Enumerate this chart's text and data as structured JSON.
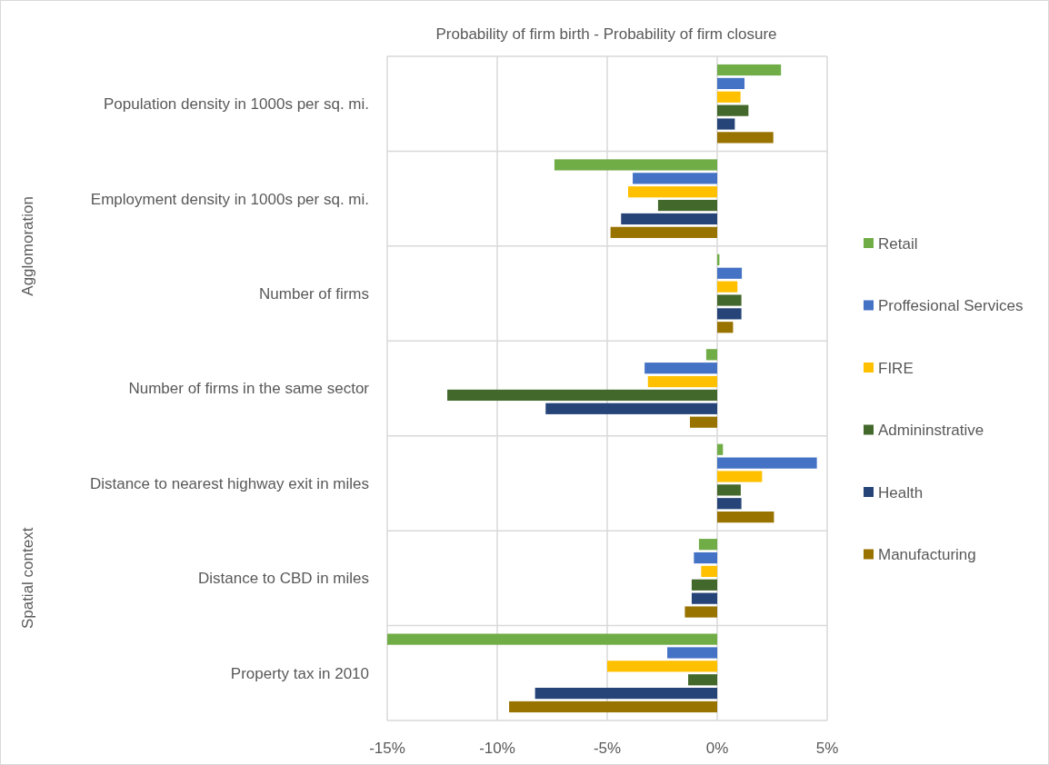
{
  "chart_data": {
    "type": "bar",
    "orientation": "horizontal",
    "title": "Probability of firm birth - Probability of firm closure",
    "categories": [
      "Population density in 1000s per sq. mi.",
      "Employment density in 1000s per sq. mi.",
      "Number of firms",
      "Number of firms in the same sector",
      "Distance to nearest highway exit in miles",
      "Distance to CBD in miles",
      "Property tax in 2010"
    ],
    "series": [
      {
        "name": "Retail",
        "color": "#70ad47",
        "values": [
          2.9,
          -7.4,
          0.1,
          -0.5,
          0.26,
          -0.83,
          -15
        ]
      },
      {
        "name": "Proffesional Services",
        "color": "#4472c4",
        "values": [
          1.24,
          -3.84,
          1.12,
          -3.3,
          4.53,
          -1.06,
          -2.27
        ]
      },
      {
        "name": "FIRE",
        "color": "#ffc000",
        "values": [
          1.06,
          -4.05,
          0.92,
          -3.15,
          2.04,
          -0.73,
          -5
        ]
      },
      {
        "name": "Admininstrative",
        "color": "#43682b",
        "values": [
          1.42,
          -2.69,
          1.1,
          -12.27,
          1.07,
          -1.16,
          -1.32
        ]
      },
      {
        "name": "Health",
        "color": "#264478",
        "values": [
          0.8,
          -4.37,
          1.1,
          -7.8,
          1.1,
          -1.16,
          -8.28
        ]
      },
      {
        "name": "Manufacturing",
        "color": "#997300",
        "values": [
          2.55,
          -4.85,
          0.72,
          -1.24,
          2.58,
          -1.47,
          -9.46
        ]
      }
    ],
    "xlim": [
      -15,
      5
    ],
    "xticks": [
      {
        "value": -15,
        "label": "-15%"
      },
      {
        "value": -10,
        "label": "-10%"
      },
      {
        "value": -5,
        "label": "-5%"
      },
      {
        "value": 0,
        "label": "0%"
      },
      {
        "value": 5,
        "label": "5%"
      }
    ],
    "grid": "x",
    "legend": "right",
    "annotations": [
      "Agglomoration",
      "Spatial context"
    ]
  }
}
